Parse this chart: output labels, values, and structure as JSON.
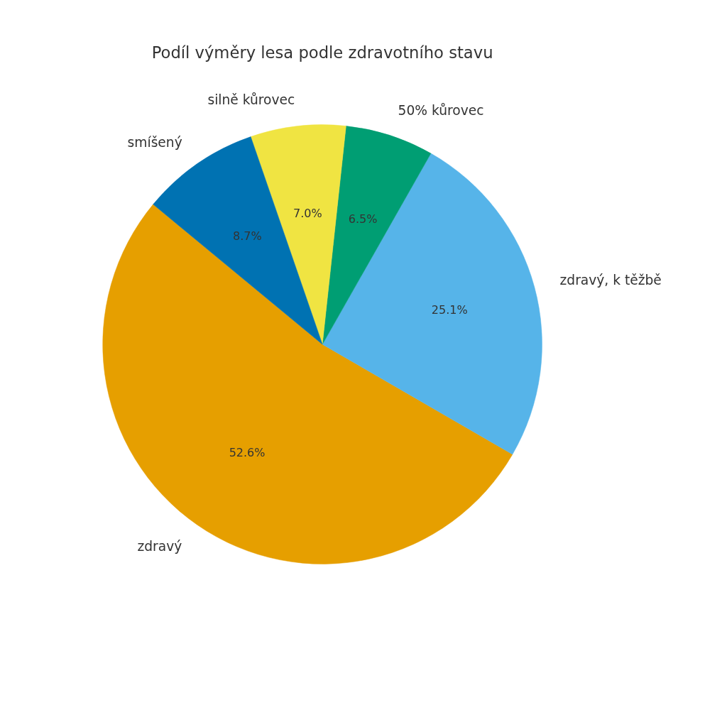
{
  "chart_data": {
    "type": "pie",
    "title": "Podíl výměry lesa podle zdravotního stavu",
    "categories": [
      "zdravý",
      "zdravý, k těžbě",
      "50% kůrovec",
      "silně kůrovec",
      "smíšený"
    ],
    "values": [
      52.6,
      25.1,
      6.5,
      7.0,
      8.7
    ],
    "value_labels": [
      "52.6%",
      "25.1%",
      "6.5%",
      "7.0%",
      "8.7%"
    ],
    "colors": [
      "#e69f00",
      "#56b4e9",
      "#009e73",
      "#f0e442",
      "#0072b2"
    ]
  }
}
